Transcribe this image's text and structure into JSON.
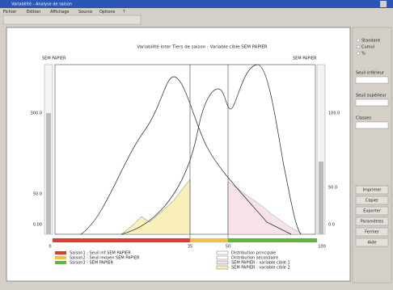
{
  "window": {
    "title": "Variabilité - Analyse de saison",
    "menu": [
      "Fichier",
      "Edition",
      "Affichage",
      "Source",
      "Options",
      "?"
    ]
  },
  "chart": {
    "title": "Variabilité inter Tiers de saison : Variable cible SEM PAPIER",
    "left_label": "SEM PAPIER",
    "right_label": "SEM PAPIER",
    "left_ticks": [
      "300.0",
      "50.0",
      "0.00"
    ],
    "right_ticks": [
      "100.0",
      "50.0",
      "0.0"
    ],
    "bottom_ticks": [
      "0",
      "35",
      "50",
      "100"
    ]
  },
  "legend": {
    "left": [
      "Saison1 : Seuil inf SEM PAPIER",
      "Saison2 : Seuil moyen SEM PAPIER",
      "Saison3 : SEM PAPIER"
    ],
    "right": [
      "Distribution principale",
      "Distribution secondaire",
      "SEM PAPIER : variable cible 1",
      "SEM PAPIER : variable cible 2"
    ]
  },
  "panel": {
    "options": [
      "Standard",
      "Cumul",
      "%"
    ],
    "fields": [
      "Seuil inférieur",
      "Seuil supérieur",
      "Classes"
    ],
    "buttons": [
      "Imprimer",
      "Copier",
      "Exporter",
      "Paramètres",
      "Fermer",
      "Aide"
    ]
  }
}
